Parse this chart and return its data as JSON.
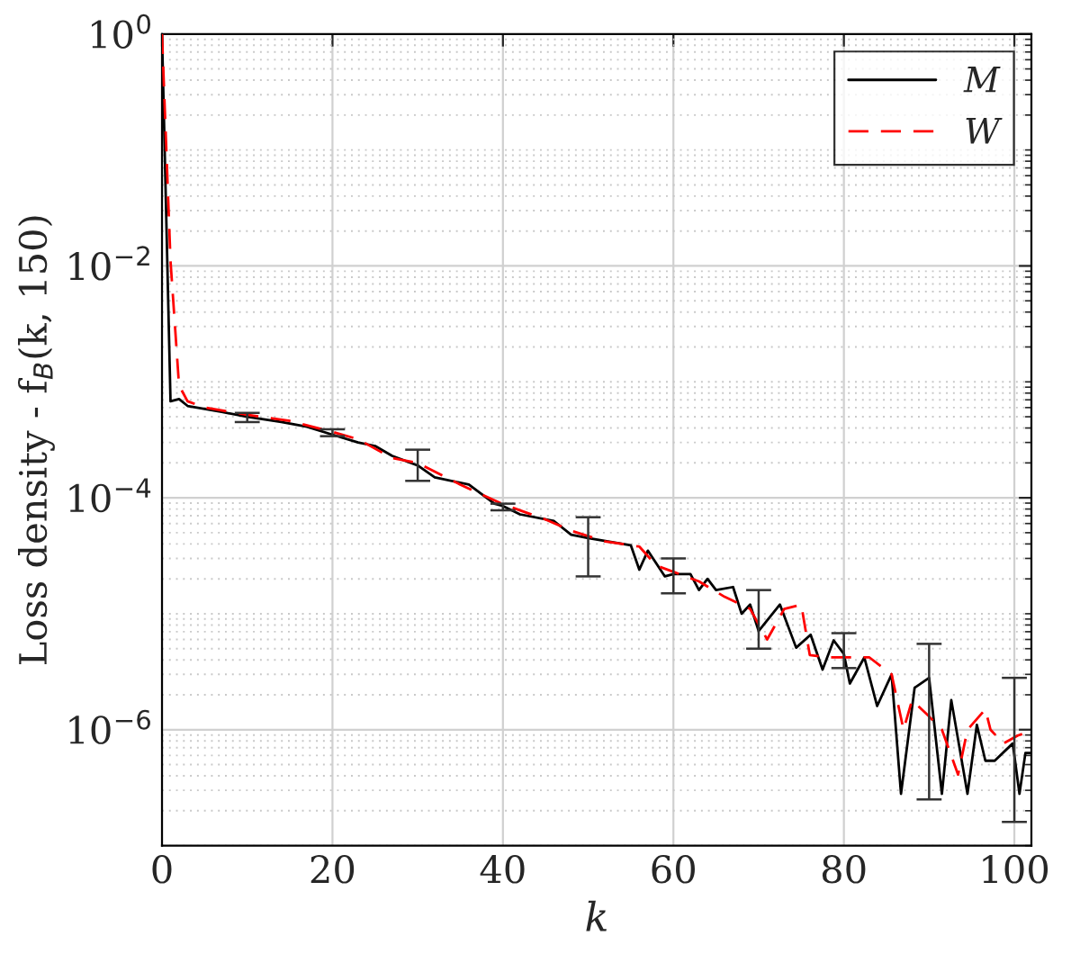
{
  "chart_data": {
    "type": "line",
    "xlabel": "k",
    "ylabel": "Loss density - f$_{B}$(k, 150)",
    "log": "y",
    "grid": true,
    "legend": "top right",
    "marker": "none",
    "xlim": [
      0,
      102
    ],
    "xticks": [
      0,
      20,
      40,
      60,
      80,
      100
    ],
    "ylim": [
      1e-07,
      1
    ],
    "yticks": [
      {
        "value": 1,
        "label": "10$^{0}$"
      },
      {
        "value": 0.01,
        "label": "10$^{−2}$"
      },
      {
        "value": 0.0001,
        "label": "10$^{−4}$"
      },
      {
        "value": 1e-06,
        "label": "10$^{−6}$"
      }
    ],
    "series": [
      {
        "name": "M",
        "color": "#000000",
        "line_style": "solid",
        "x": [
          0,
          1,
          2,
          3,
          7,
          10,
          14,
          17,
          20,
          23,
          25,
          27,
          30,
          32,
          36,
          39,
          40,
          42,
          46,
          48,
          50,
          55,
          56,
          57,
          59,
          60,
          62,
          63,
          64,
          65,
          67,
          68,
          69,
          70,
          72.5,
          74.4,
          76.1,
          77.5,
          78.8,
          80,
          80.7,
          82.4,
          83.9,
          85.6,
          86.7,
          88.3,
          90,
          91.5,
          92.6,
          94.5,
          95.6,
          96.6,
          97.7,
          99.8,
          100,
          100.6,
          101.3,
          102
        ],
        "values": [
          1,
          0.00068,
          0.00071,
          0.00062,
          0.00055,
          0.0005,
          0.00045,
          0.00041,
          0.00035,
          0.0003,
          0.00028,
          0.00023,
          0.00019,
          0.00015,
          0.00013,
          8.9e-05,
          8.5e-05,
          7.2e-05,
          6.3e-05,
          4.8e-05,
          4.5e-05,
          3.9e-05,
          2.4e-05,
          3.5e-05,
          2.1e-05,
          2.2e-05,
          2.2e-05,
          1.6e-05,
          2e-05,
          1.6e-05,
          1.7e-05,
          1e-05,
          1.2e-05,
          7.1e-06,
          1.2e-05,
          5.1e-06,
          6.6e-06,
          3.3e-06,
          5.9e-06,
          4.5e-06,
          2.5e-06,
          4.2e-06,
          1.6e-06,
          3e-06,
          2.8e-07,
          2.3e-06,
          2.8e-06,
          2.8e-07,
          1.8e-06,
          2.8e-07,
          1.1e-06,
          5.4e-07,
          5.4e-07,
          7.6e-07,
          6e-07,
          2.8e-07,
          6.3e-07,
          6.3e-07
        ],
        "errors": [
          null,
          null,
          null,
          null,
          null,
          [
            0.00045,
            0.00054
          ],
          null,
          null,
          [
            0.00034,
            0.00039
          ],
          null,
          null,
          null,
          [
            0.00014,
            0.00026
          ],
          null,
          null,
          null,
          [
            7.8e-05,
            8.9e-05
          ],
          null,
          null,
          null,
          [
            2.1e-05,
            6.8e-05
          ],
          null,
          null,
          null,
          null,
          [
            1.5e-05,
            3e-05
          ],
          null,
          null,
          null,
          null,
          null,
          null,
          null,
          [
            5e-06,
            1.6e-05
          ],
          null,
          null,
          null,
          null,
          null,
          [
            3.4e-06,
            6.8e-06
          ],
          null,
          null,
          null,
          null,
          null,
          null,
          [
            2.5e-07,
            5.5e-06
          ],
          null,
          null,
          null,
          null,
          null,
          null,
          null,
          [
            1.6e-07,
            2.8e-06
          ],
          null,
          null,
          null
        ]
      },
      {
        "name": "W",
        "color": "#ff0000",
        "line_style": "dashed",
        "x": [
          0,
          1,
          2,
          3,
          5,
          10,
          15,
          20,
          23,
          27,
          30,
          35,
          40,
          45,
          48,
          52,
          56,
          58,
          60,
          63,
          66,
          69,
          71,
          73,
          75,
          76,
          78,
          83,
          85.6,
          87,
          88,
          90,
          91.5,
          93.4,
          94.5,
          96.6,
          97.2,
          98.7,
          100.4,
          101.5
        ],
        "values": [
          1,
          0.011,
          0.00093,
          0.00068,
          0.0006,
          0.00052,
          0.00046,
          0.00037,
          0.00032,
          0.00022,
          0.0002,
          0.00013,
          8.8e-05,
          6.5e-05,
          5.2e-05,
          4.2e-05,
          3.8e-05,
          2.6e-05,
          2.3e-05,
          1.9e-05,
          1.4e-05,
          1.1e-05,
          6e-06,
          1.1e-05,
          1.2e-05,
          4.4e-06,
          4.2e-06,
          4.2e-06,
          3e-06,
          1e-06,
          1.8e-06,
          1.3e-06,
          1e-06,
          4.1e-07,
          1e-06,
          1.5e-06,
          1e-06,
          7.6e-07,
          8.9e-07,
          9.5e-07
        ]
      }
    ]
  }
}
